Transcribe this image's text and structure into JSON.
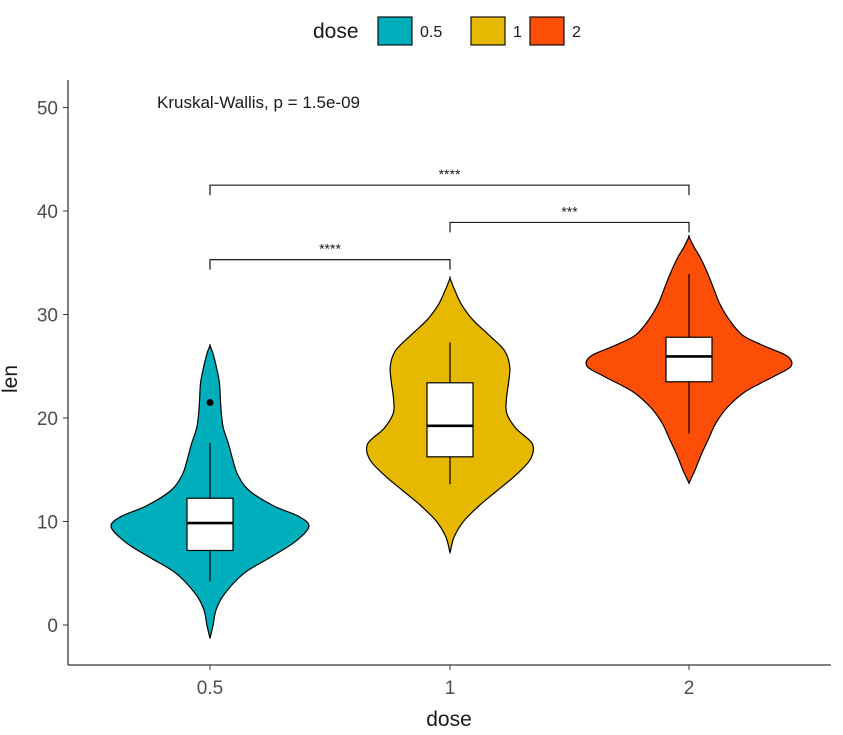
{
  "chart_data": {
    "type": "violin",
    "x_label": "dose",
    "y_label": "len",
    "y_ticks": [
      0,
      10,
      20,
      30,
      40,
      50
    ],
    "y_range": [
      -2.5,
      52.5
    ],
    "categories": [
      "0.5",
      "1",
      "2"
    ],
    "legend": {
      "title": "dose",
      "position": "top",
      "entries": [
        "0.5",
        "1",
        "2"
      ]
    },
    "colors": [
      "#00AFBB",
      "#E7B800",
      "#FC4E07"
    ],
    "annotation": "Kruskal-Wallis, p = 1.5e-09",
    "box_stats": [
      {
        "group": "0.5",
        "min": 4.2,
        "q1": 7.2,
        "median": 9.85,
        "q3": 12.25,
        "max": 17.6,
        "outliers": [
          21.5
        ]
      },
      {
        "group": "1",
        "min": 13.6,
        "q1": 16.25,
        "median": 19.25,
        "q3": 23.4,
        "max": 27.3,
        "outliers": []
      },
      {
        "group": "2",
        "min": 18.5,
        "q1": 23.5,
        "median": 25.95,
        "q3": 27.8,
        "max": 33.9,
        "outliers": []
      }
    ],
    "violins": [
      {
        "group": "0.5",
        "ymin": -1.3,
        "ymax": 27.0,
        "profile": [
          [
            -1.3,
            0
          ],
          [
            0,
            0.03
          ],
          [
            1.5,
            0.06
          ],
          [
            3,
            0.14
          ],
          [
            5,
            0.33
          ],
          [
            6.5,
            0.58
          ],
          [
            8,
            0.82
          ],
          [
            9.5,
            0.96
          ],
          [
            10.5,
            0.86
          ],
          [
            11.5,
            0.62
          ],
          [
            13,
            0.38
          ],
          [
            14.5,
            0.27
          ],
          [
            16,
            0.22
          ],
          [
            17.5,
            0.18
          ],
          [
            19,
            0.13
          ],
          [
            20.5,
            0.11
          ],
          [
            22,
            0.1
          ],
          [
            23.5,
            0.09
          ],
          [
            25,
            0.06
          ],
          [
            26.2,
            0.03
          ],
          [
            27.0,
            0
          ]
        ]
      },
      {
        "group": "1",
        "ymin": 7.0,
        "ymax": 33.5,
        "profile": [
          [
            7.0,
            0
          ],
          [
            8.5,
            0.04
          ],
          [
            10,
            0.13
          ],
          [
            11.5,
            0.28
          ],
          [
            13,
            0.46
          ],
          [
            14.5,
            0.64
          ],
          [
            16,
            0.78
          ],
          [
            17.5,
            0.8
          ],
          [
            19,
            0.64
          ],
          [
            20.5,
            0.55
          ],
          [
            22,
            0.55
          ],
          [
            23.5,
            0.57
          ],
          [
            25,
            0.58
          ],
          [
            26.5,
            0.53
          ],
          [
            28,
            0.38
          ],
          [
            29.5,
            0.22
          ],
          [
            31,
            0.11
          ],
          [
            32.5,
            0.04
          ],
          [
            33.5,
            0
          ]
        ]
      },
      {
        "group": "2",
        "ymin": 13.7,
        "ymax": 37.5,
        "profile": [
          [
            13.7,
            0
          ],
          [
            15,
            0.06
          ],
          [
            16.5,
            0.12
          ],
          [
            18,
            0.19
          ],
          [
            19.5,
            0.26
          ],
          [
            21,
            0.37
          ],
          [
            22.5,
            0.54
          ],
          [
            24,
            0.82
          ],
          [
            25,
            0.99
          ],
          [
            26,
            0.95
          ],
          [
            27,
            0.72
          ],
          [
            28,
            0.52
          ],
          [
            29.5,
            0.39
          ],
          [
            31,
            0.3
          ],
          [
            32.5,
            0.24
          ],
          [
            34,
            0.18
          ],
          [
            35.5,
            0.11
          ],
          [
            36.5,
            0.05
          ],
          [
            37.5,
            0
          ]
        ]
      }
    ],
    "comparisons": [
      {
        "from": "0.5",
        "to": "1",
        "y": 35.3,
        "label": "****"
      },
      {
        "from": "1",
        "to": "2",
        "y": 38.9,
        "label": "***"
      },
      {
        "from": "0.5",
        "to": "2",
        "y": 42.5,
        "label": "****"
      }
    ],
    "grid": false
  }
}
